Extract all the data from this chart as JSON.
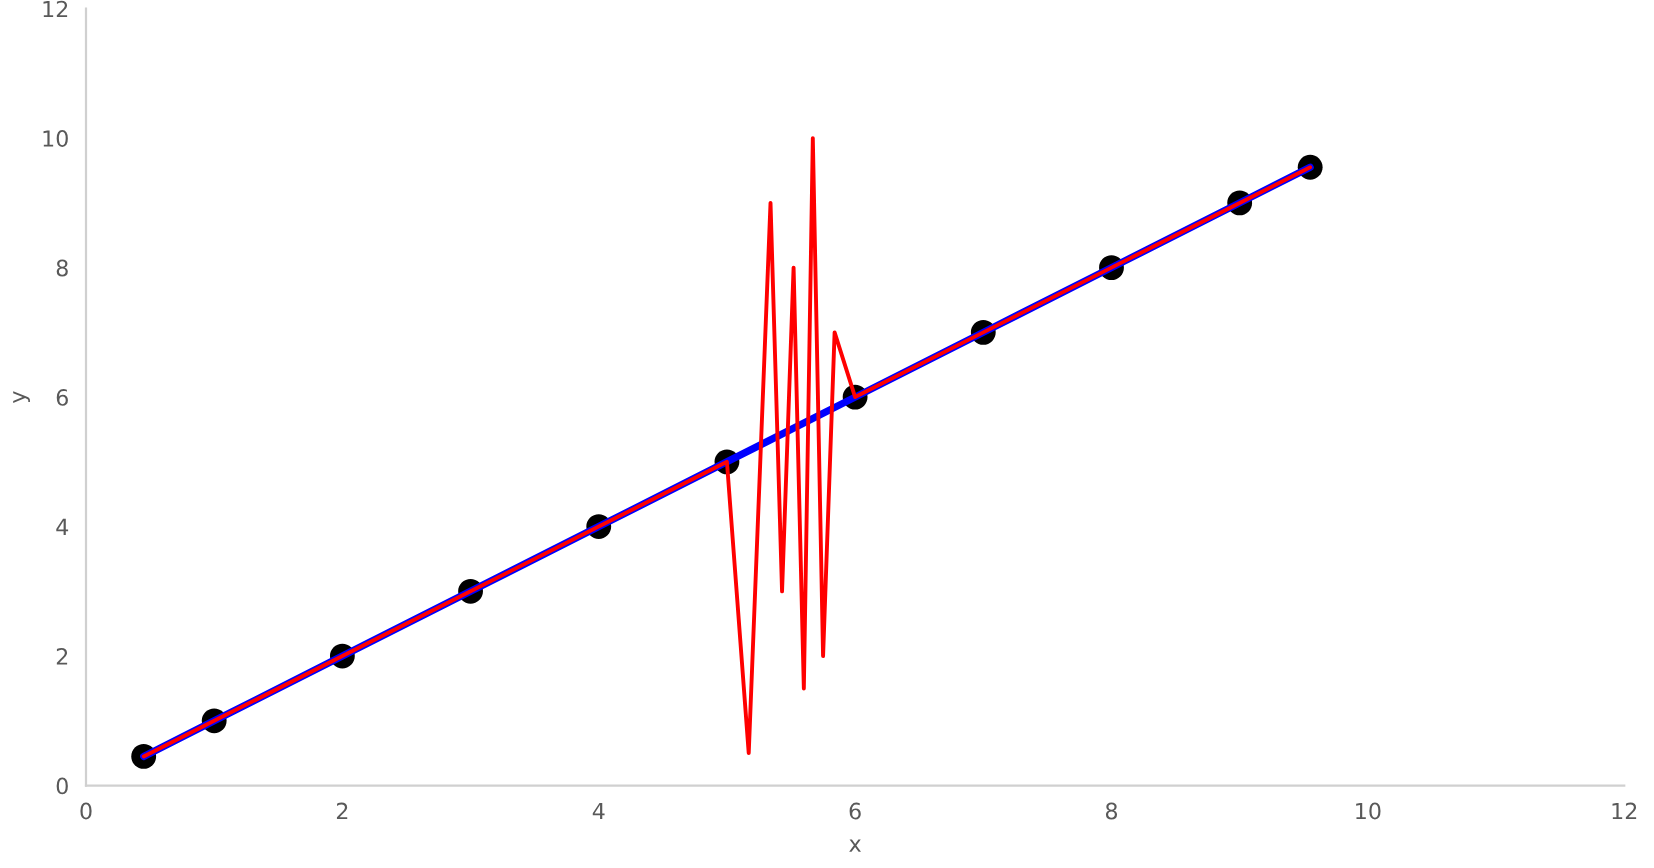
{
  "chart_data": {
    "type": "line",
    "xlabel": "x",
    "ylabel": "y",
    "xlim": [
      0,
      12
    ],
    "ylim": [
      0,
      12
    ],
    "xticks": [
      0,
      2,
      4,
      6,
      8,
      10,
      12
    ],
    "yticks": [
      0,
      2,
      4,
      6,
      8,
      10,
      12
    ],
    "grid": false,
    "legend": false,
    "series": [
      {
        "type": "scatter",
        "color": "#000000",
        "marker": "circle",
        "x": [
          0.45,
          1,
          2,
          3,
          4,
          5,
          6,
          7,
          8,
          9,
          9.55
        ],
        "values": [
          0.45,
          1,
          2,
          3,
          4,
          5,
          6,
          7,
          8,
          9,
          9.55
        ]
      },
      {
        "color": "#0000ff",
        "x": [
          0.45,
          1,
          2,
          3,
          4,
          5,
          6,
          7,
          8,
          9,
          9.55
        ],
        "values": [
          0.45,
          1,
          2,
          3,
          4,
          5,
          6,
          7,
          8,
          9,
          9.55
        ]
      },
      {
        "color": "#ff0000",
        "x": [
          0.45,
          1,
          2,
          3,
          4,
          5,
          5.17,
          5.34,
          5.43,
          5.52,
          5.6,
          5.67,
          5.75,
          5.84,
          6,
          7,
          8,
          9,
          9.55
        ],
        "values": [
          0.45,
          1,
          2,
          3,
          4,
          5,
          0.5,
          9,
          3,
          8,
          1.5,
          10,
          2,
          7,
          6,
          7,
          8,
          9,
          9.55
        ]
      }
    ]
  }
}
